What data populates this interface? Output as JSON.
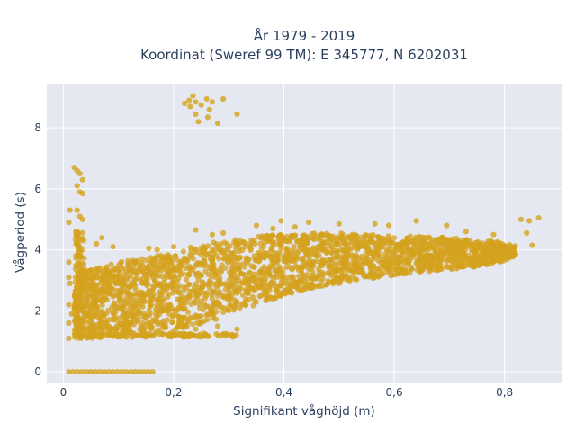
{
  "chart_data": {
    "type": "scatter",
    "title": "År 1979 - 2019",
    "subtitle": "Koordinat (Sweref 99 TM): E 345777, N 6202031",
    "xlabel": "Signifikant våghöjd (m)",
    "ylabel": "Vågperiod (s)",
    "xlim": [
      -0.03,
      0.905
    ],
    "ylim": [
      -0.35,
      9.45
    ],
    "xticks": [
      0,
      0.2,
      0.4,
      0.6,
      0.8
    ],
    "xtick_labels": [
      "0",
      "0,2",
      "0,4",
      "0,6",
      "0,8"
    ],
    "yticks": [
      0,
      2,
      4,
      6,
      8
    ],
    "ytick_labels": [
      "0",
      "2",
      "4",
      "6",
      "8"
    ],
    "grid": true,
    "background_color": "#e5e8f1",
    "marker_color": "#d4a21d",
    "series": [
      {
        "outliers": [
          [
            0.22,
            8.8
          ],
          [
            0.23,
            8.7
          ],
          [
            0.235,
            9.05
          ],
          [
            0.24,
            8.85
          ],
          [
            0.24,
            8.45
          ],
          [
            0.25,
            8.75
          ],
          [
            0.245,
            8.2
          ],
          [
            0.26,
            8.95
          ],
          [
            0.265,
            8.6
          ],
          [
            0.262,
            8.35
          ],
          [
            0.27,
            8.85
          ],
          [
            0.28,
            8.15
          ],
          [
            0.29,
            8.95
          ],
          [
            0.315,
            8.45
          ],
          [
            0.228,
            8.9
          ],
          [
            0.01,
            4.9
          ],
          [
            0.012,
            5.3
          ],
          [
            0.01,
            3.6
          ],
          [
            0.01,
            3.1
          ],
          [
            0.01,
            2.2
          ],
          [
            0.01,
            1.6
          ],
          [
            0.01,
            1.1
          ],
          [
            0.015,
            1.9
          ],
          [
            0.012,
            2.9
          ],
          [
            0.02,
            6.7
          ],
          [
            0.025,
            6.6
          ],
          [
            0.03,
            6.5
          ],
          [
            0.035,
            6.3
          ],
          [
            0.025,
            6.1
          ],
          [
            0.03,
            5.9
          ],
          [
            0.035,
            5.85
          ],
          [
            0.025,
            5.3
          ],
          [
            0.03,
            5.1
          ],
          [
            0.035,
            5.0
          ],
          [
            0.025,
            4.6
          ],
          [
            0.03,
            4.3
          ],
          [
            0.35,
            4.8
          ],
          [
            0.38,
            4.7
          ],
          [
            0.395,
            4.95
          ],
          [
            0.42,
            4.75
          ],
          [
            0.445,
            4.9
          ],
          [
            0.5,
            4.85
          ],
          [
            0.565,
            4.85
          ],
          [
            0.59,
            4.8
          ],
          [
            0.64,
            4.95
          ],
          [
            0.695,
            4.8
          ],
          [
            0.73,
            4.6
          ],
          [
            0.78,
            4.5
          ],
          [
            0.83,
            5.0
          ],
          [
            0.845,
            4.95
          ],
          [
            0.862,
            5.05
          ],
          [
            0.84,
            4.55
          ],
          [
            0.85,
            4.15
          ],
          [
            0.155,
            4.05
          ],
          [
            0.17,
            4.0
          ],
          [
            0.2,
            4.1
          ],
          [
            0.24,
            4.65
          ],
          [
            0.27,
            4.5
          ],
          [
            0.29,
            4.55
          ],
          [
            0.06,
            4.2
          ],
          [
            0.07,
            4.4
          ],
          [
            0.09,
            4.1
          ],
          [
            0.12,
            1.4
          ],
          [
            0.16,
            1.45
          ],
          [
            0.2,
            1.35
          ],
          [
            0.24,
            1.4
          ],
          [
            0.28,
            1.5
          ],
          [
            0.315,
            1.4
          ],
          [
            0.1,
            1.15
          ],
          [
            0.2,
            1.2
          ],
          [
            0.3,
            1.2
          ]
        ],
        "zero_band": [
          0.01,
          0.17,
          0.0
        ],
        "low_band": [
          0.025,
          0.315,
          1.2
        ],
        "dense_band": [
          [
            0.02,
            1.1,
            3.2
          ],
          [
            0.05,
            1.1,
            3.4
          ],
          [
            0.08,
            1.15,
            3.5
          ],
          [
            0.1,
            1.2,
            3.6
          ],
          [
            0.15,
            1.3,
            3.75
          ],
          [
            0.2,
            1.4,
            3.9
          ],
          [
            0.25,
            1.5,
            4.2
          ],
          [
            0.3,
            1.9,
            4.3
          ],
          [
            0.35,
            2.2,
            4.45
          ],
          [
            0.4,
            2.5,
            4.5
          ],
          [
            0.45,
            2.75,
            4.55
          ],
          [
            0.5,
            2.9,
            4.55
          ],
          [
            0.55,
            3.05,
            4.5
          ],
          [
            0.6,
            3.15,
            4.45
          ],
          [
            0.65,
            3.25,
            4.45
          ],
          [
            0.7,
            3.35,
            4.4
          ],
          [
            0.75,
            3.45,
            4.3
          ],
          [
            0.78,
            3.55,
            4.3
          ],
          [
            0.8,
            3.65,
            4.2
          ],
          [
            0.82,
            3.8,
            4.15
          ]
        ]
      }
    ]
  }
}
